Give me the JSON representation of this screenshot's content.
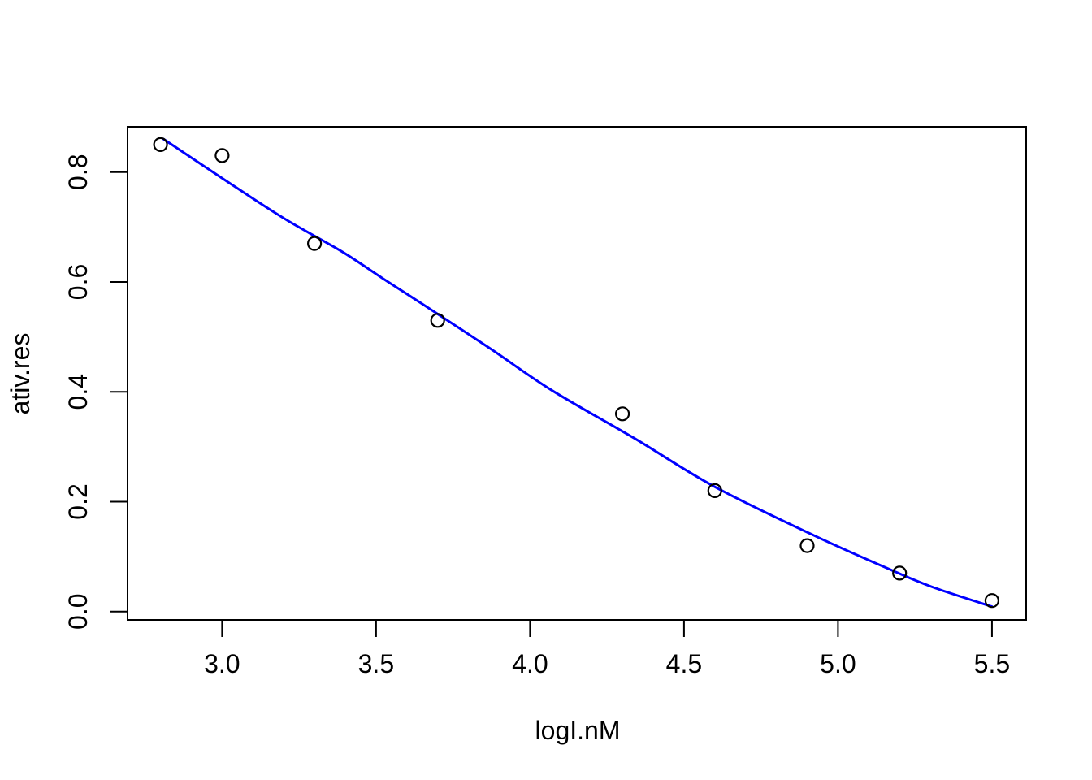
{
  "figure": {
    "background": "#ffffff",
    "foreground": "#000000"
  },
  "chart_data": {
    "type": "scatter",
    "title": "",
    "xlabel": "logI.nM",
    "ylabel": "ativ.res",
    "x": [
      2.8,
      3.0,
      3.3,
      3.7,
      4.3,
      4.6,
      4.9,
      5.2,
      5.5
    ],
    "y": [
      0.85,
      0.83,
      0.67,
      0.53,
      0.36,
      0.22,
      0.12,
      0.07,
      0.02
    ],
    "marker": "open-circle",
    "marker_color": "#000000",
    "fit_curve": {
      "name": "fitted-dose-response-curve",
      "color": "#0000ff",
      "x": [
        2.81,
        3.0,
        3.2,
        3.39,
        3.52,
        3.65,
        3.87,
        4.07,
        4.34,
        4.6,
        4.92,
        5.18,
        5.31,
        5.5
      ],
      "y": [
        0.86,
        0.789,
        0.716,
        0.655,
        0.607,
        0.56,
        0.479,
        0.403,
        0.315,
        0.227,
        0.139,
        0.074,
        0.044,
        0.009
      ]
    },
    "x_ticks": [
      {
        "value": 3.0,
        "label": "3.0"
      },
      {
        "value": 3.5,
        "label": "3.5"
      },
      {
        "value": 4.0,
        "label": "4.0"
      },
      {
        "value": 4.5,
        "label": "4.5"
      },
      {
        "value": 5.0,
        "label": "5.0"
      },
      {
        "value": 5.5,
        "label": "5.5"
      }
    ],
    "y_ticks": [
      {
        "value": 0.0,
        "label": "0.0"
      },
      {
        "value": 0.2,
        "label": "0.2"
      },
      {
        "value": 0.4,
        "label": "0.4"
      },
      {
        "value": 0.6,
        "label": "0.6"
      },
      {
        "value": 0.8,
        "label": "0.8"
      }
    ],
    "xlim": [
      2.693,
      5.611
    ],
    "ylim": [
      -0.0152,
      0.8824
    ],
    "grid": false,
    "legend": null
  }
}
